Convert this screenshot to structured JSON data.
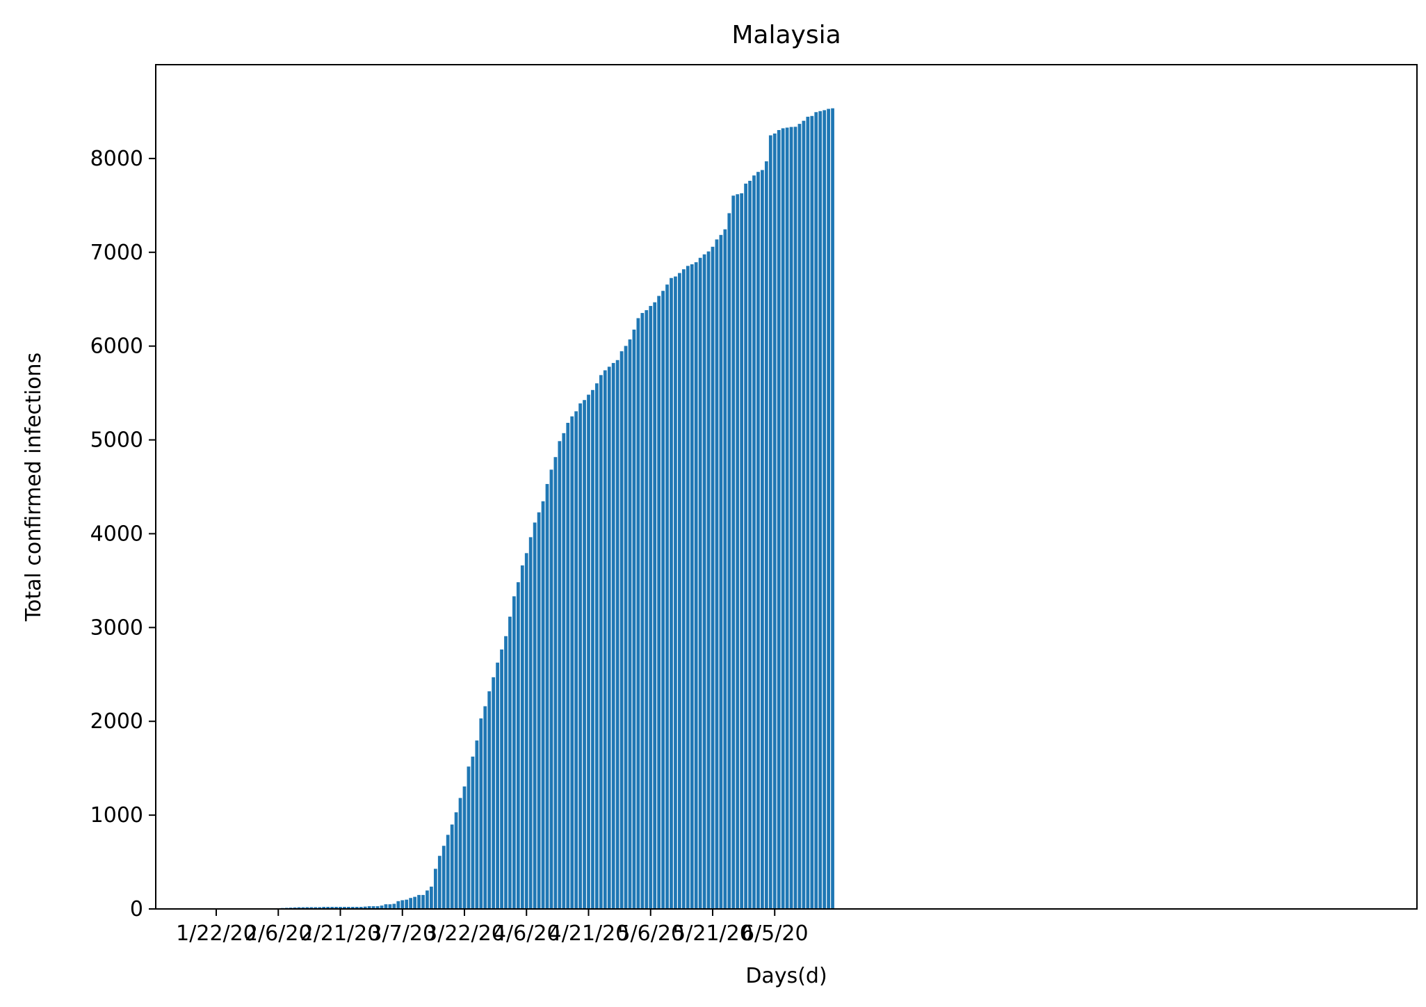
{
  "chart_data": {
    "type": "bar",
    "title": "Malaysia",
    "xlabel": "Days(d)",
    "ylabel": "Total confirmed infections",
    "ylim": [
      0,
      9000
    ],
    "y_ticks": [
      0,
      1000,
      2000,
      3000,
      4000,
      5000,
      6000,
      7000,
      8000
    ],
    "x_tick_labels": [
      "1/22/20",
      "2/6/20",
      "2/21/20",
      "3/7/20",
      "3/22/20",
      "4/6/20",
      "4/21/20",
      "5/6/20",
      "5/21/20",
      "6/5/20"
    ],
    "grid": false,
    "bar_color": "#1f77b4",
    "categories": [
      "1/22/20",
      "1/23/20",
      "1/24/20",
      "1/25/20",
      "1/26/20",
      "1/27/20",
      "1/28/20",
      "1/29/20",
      "1/30/20",
      "1/31/20",
      "2/1/20",
      "2/2/20",
      "2/3/20",
      "2/4/20",
      "2/5/20",
      "2/6/20",
      "2/7/20",
      "2/8/20",
      "2/9/20",
      "2/10/20",
      "2/11/20",
      "2/12/20",
      "2/13/20",
      "2/14/20",
      "2/15/20",
      "2/16/20",
      "2/17/20",
      "2/18/20",
      "2/19/20",
      "2/20/20",
      "2/21/20",
      "2/22/20",
      "2/23/20",
      "2/24/20",
      "2/25/20",
      "2/26/20",
      "2/27/20",
      "2/28/20",
      "2/29/20",
      "3/1/20",
      "3/2/20",
      "3/3/20",
      "3/4/20",
      "3/5/20",
      "3/6/20",
      "3/7/20",
      "3/8/20",
      "3/9/20",
      "3/10/20",
      "3/11/20",
      "3/12/20",
      "3/13/20",
      "3/14/20",
      "3/15/20",
      "3/16/20",
      "3/17/20",
      "3/18/20",
      "3/19/20",
      "3/20/20",
      "3/21/20",
      "3/22/20",
      "3/23/20",
      "3/24/20",
      "3/25/20",
      "3/26/20",
      "3/27/20",
      "3/28/20",
      "3/29/20",
      "3/30/20",
      "3/31/20",
      "4/1/20",
      "4/2/20",
      "4/3/20",
      "4/4/20",
      "4/5/20",
      "4/6/20",
      "4/7/20",
      "4/8/20",
      "4/9/20",
      "4/10/20",
      "4/11/20",
      "4/12/20",
      "4/13/20",
      "4/14/20",
      "4/15/20",
      "4/16/20",
      "4/17/20",
      "4/18/20",
      "4/19/20",
      "4/20/20",
      "4/21/20",
      "4/22/20",
      "4/23/20",
      "4/24/20",
      "4/25/20",
      "4/26/20",
      "4/27/20",
      "4/28/20",
      "4/29/20",
      "4/30/20",
      "5/1/20",
      "5/2/20",
      "5/3/20",
      "5/4/20",
      "5/5/20",
      "5/6/20",
      "5/7/20",
      "5/8/20",
      "5/9/20",
      "5/10/20",
      "5/11/20",
      "5/12/20",
      "5/13/20",
      "5/14/20",
      "5/15/20",
      "5/16/20",
      "5/17/20",
      "5/18/20",
      "5/19/20",
      "5/20/20",
      "5/21/20",
      "5/22/20",
      "5/23/20",
      "5/24/20",
      "5/25/20",
      "5/26/20",
      "5/27/20",
      "5/28/20",
      "5/29/20",
      "5/30/20",
      "5/31/20",
      "6/1/20",
      "6/2/20",
      "6/3/20",
      "6/4/20",
      "6/5/20",
      "6/6/20",
      "6/7/20",
      "6/8/20",
      "6/9/20",
      "6/10/20",
      "6/11/20",
      "6/12/20",
      "6/13/20",
      "6/14/20",
      "6/15/20",
      "6/16/20",
      "6/17/20",
      "6/18/20",
      "6/19/20"
    ],
    "values": [
      0,
      0,
      0,
      0,
      0,
      0,
      0,
      0,
      0,
      0,
      0,
      0,
      0,
      0,
      0,
      8,
      10,
      12,
      14,
      16,
      18,
      18,
      19,
      19,
      19,
      19,
      22,
      22,
      22,
      22,
      22,
      22,
      22,
      22,
      22,
      22,
      25,
      29,
      29,
      29,
      36,
      50,
      50,
      55,
      83,
      93,
      99,
      117,
      129,
      149,
      149,
      197,
      238,
      428,
      566,
      673,
      790,
      900,
      1030,
      1183,
      1306,
      1518,
      1624,
      1796,
      2031,
      2161,
      2320,
      2470,
      2626,
      2766,
      2908,
      3116,
      3333,
      3483,
      3662,
      3793,
      3963,
      4119,
      4228,
      4346,
      4530,
      4683,
      4817,
      4987,
      5072,
      5182,
      5251,
      5305,
      5389,
      5425,
      5482,
      5532,
      5603,
      5691,
      5742,
      5780,
      5820,
      5851,
      5945,
      6002,
      6071,
      6176,
      6298,
      6353,
      6383,
      6428,
      6467,
      6535,
      6589,
      6656,
      6726,
      6742,
      6779,
      6819,
      6855,
      6872,
      6894,
      6941,
      6978,
      7009,
      7059,
      7137,
      7185,
      7245,
      7417,
      7604,
      7619,
      7629,
      7732,
      7762,
      7819,
      7857,
      7877,
      7970,
      8247,
      8266,
      8303,
      8322,
      8329,
      8336,
      8338,
      8369,
      8402,
      8445,
      8453,
      8494,
      8505,
      8515,
      8529,
      8535
    ]
  }
}
